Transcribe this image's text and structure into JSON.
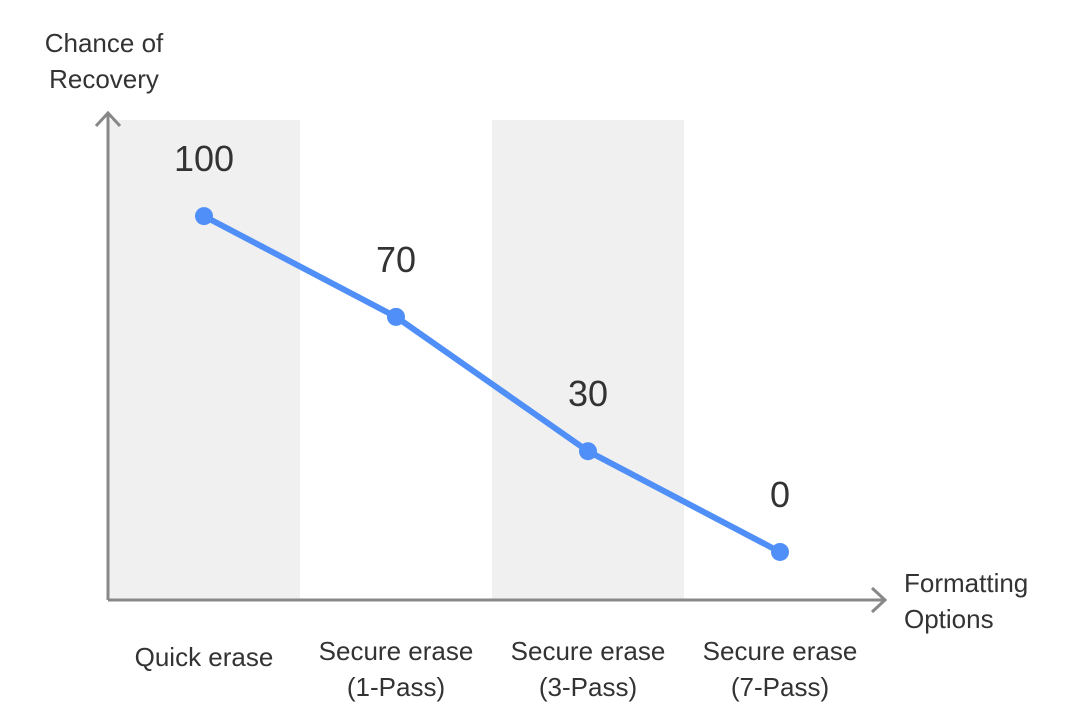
{
  "chart_data": {
    "type": "line",
    "y_label": "Chance of\nRecovery",
    "x_label": "Formatting\nOptions",
    "categories": [
      "Quick erase",
      "Secure erase\n(1-Pass)",
      "Secure erase\n(3-Pass)",
      "Secure erase\n(7-Pass)"
    ],
    "values": [
      100,
      70,
      30,
      0
    ],
    "color": "#4f8ff7",
    "ylim": [
      -14.3,
      131
    ],
    "band_color": "#f0f0f0"
  }
}
